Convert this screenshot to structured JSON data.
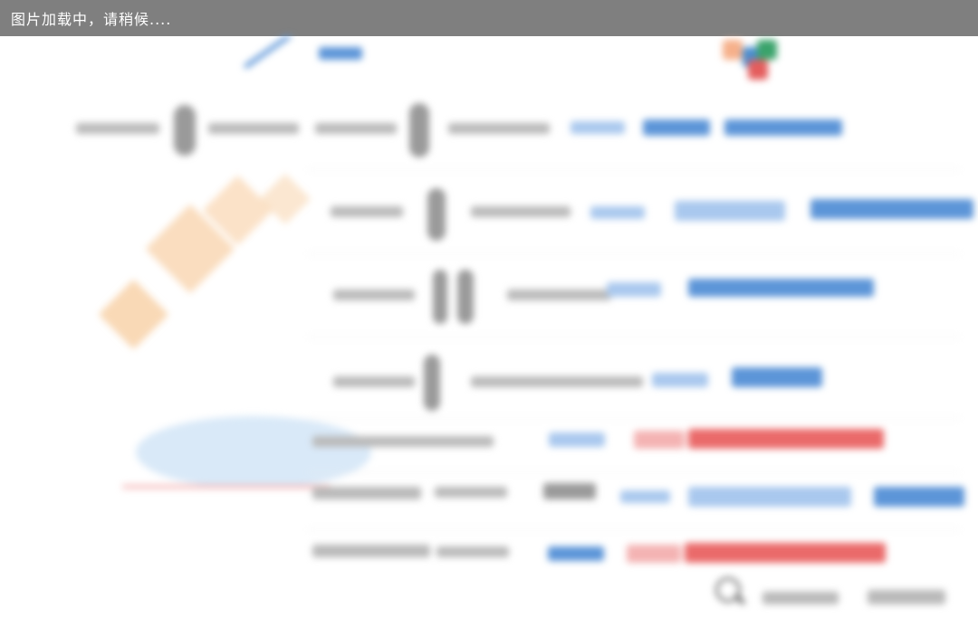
{
  "loading_bar": {
    "text": "图片加载中，请稍候....",
    "background": "#7f7f7f",
    "text_color": "#ffffff"
  },
  "image": {
    "state": "blurred-placeholder",
    "accent_colors": [
      "#5c95d8",
      "#ea6a6a",
      "#f8cfa4"
    ]
  }
}
